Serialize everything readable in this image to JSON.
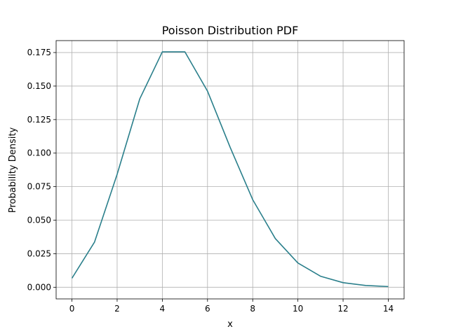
{
  "chart_data": {
    "type": "line",
    "title": "Poisson Distribution PDF",
    "xlabel": "x",
    "ylabel": "Probability Density",
    "xlim": [
      -0.7,
      14.7
    ],
    "ylim": [
      -0.0087,
      0.1839
    ],
    "xticks": [
      0,
      2,
      4,
      6,
      8,
      10,
      12,
      14
    ],
    "xtick_labels": [
      "0",
      "2",
      "4",
      "6",
      "8",
      "10",
      "12",
      "14"
    ],
    "yticks": [
      0.0,
      0.025,
      0.05,
      0.075,
      0.1,
      0.125,
      0.15,
      0.175
    ],
    "ytick_labels": [
      "0.000",
      "0.025",
      "0.050",
      "0.075",
      "0.100",
      "0.125",
      "0.150",
      "0.175"
    ],
    "grid": true,
    "color": "#2a7f8b",
    "series": [
      {
        "x": [
          0,
          1,
          2,
          3,
          4,
          5,
          6,
          7,
          8,
          9,
          10,
          11,
          12,
          13,
          14
        ],
        "values": [
          0.0067,
          0.0337,
          0.0842,
          0.1404,
          0.1755,
          0.1755,
          0.1462,
          0.1044,
          0.0653,
          0.0363,
          0.0181,
          0.0082,
          0.0034,
          0.0013,
          0.0005
        ]
      }
    ]
  }
}
